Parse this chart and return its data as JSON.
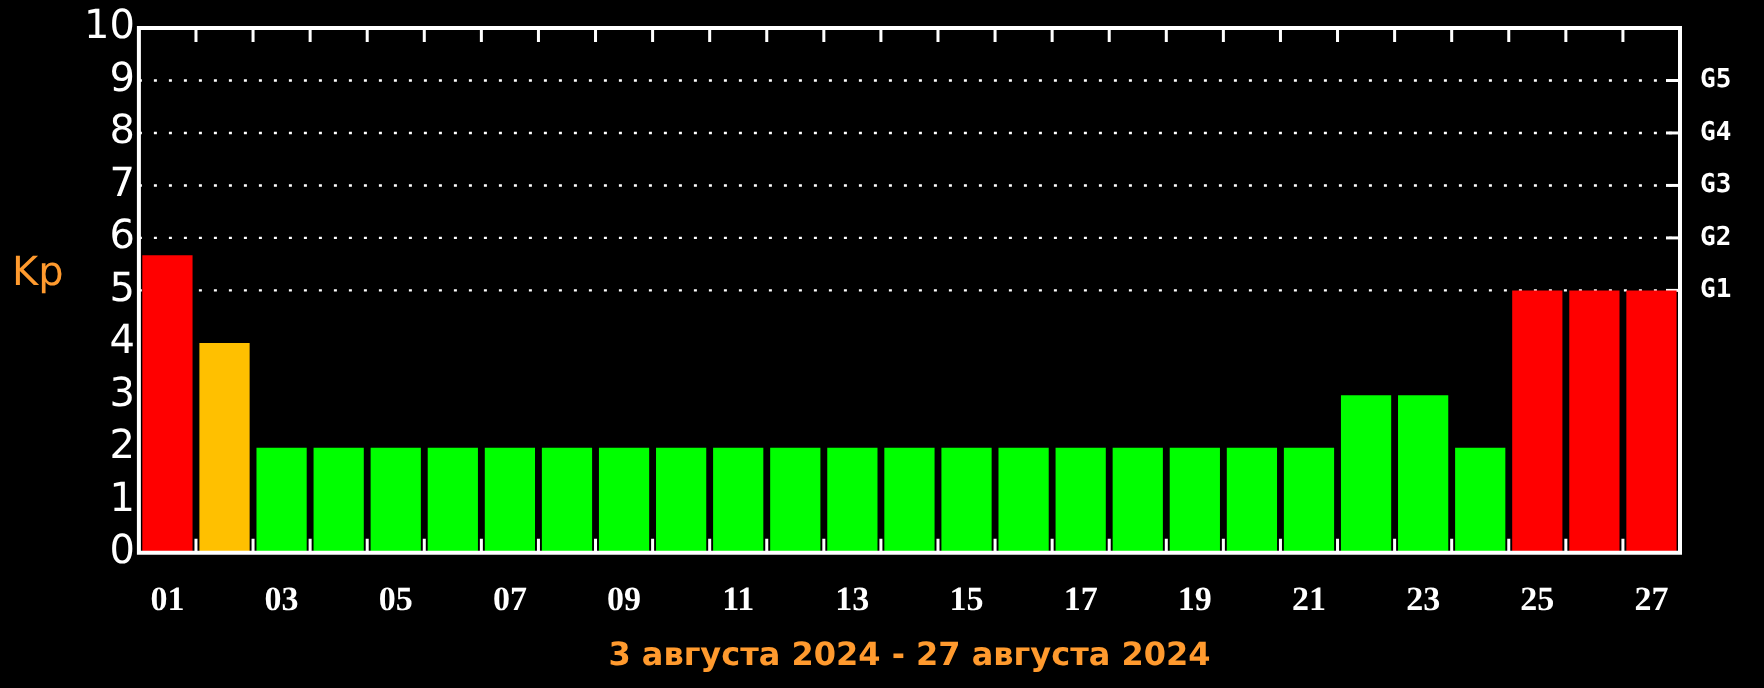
{
  "chart_data": {
    "type": "bar",
    "xlabel": "3 августа 2024 - 27 августа 2024",
    "ylabel": "Kp",
    "categories": [
      "01",
      null,
      "03",
      null,
      "05",
      null,
      "07",
      null,
      "09",
      null,
      "11",
      null,
      "13",
      null,
      "15",
      null,
      "17",
      null,
      "19",
      null,
      "21",
      null,
      "23",
      null,
      "25",
      null,
      "27"
    ],
    "values": [
      5.67,
      4,
      2,
      2,
      2,
      2,
      2,
      2,
      2,
      2,
      2,
      2,
      2,
      2,
      2,
      2,
      2,
      2,
      2,
      2,
      2,
      3,
      3,
      2,
      5,
      5,
      5
    ],
    "colors": [
      "#ff0000",
      "#ffc000",
      "#00ff00",
      "#00ff00",
      "#00ff00",
      "#00ff00",
      "#00ff00",
      "#00ff00",
      "#00ff00",
      "#00ff00",
      "#00ff00",
      "#00ff00",
      "#00ff00",
      "#00ff00",
      "#00ff00",
      "#00ff00",
      "#00ff00",
      "#00ff00",
      "#00ff00",
      "#00ff00",
      "#00ff00",
      "#00ff00",
      "#00ff00",
      "#00ff00",
      "#ff0000",
      "#ff0000",
      "#ff0000"
    ],
    "ylim": [
      0,
      10
    ],
    "yticks": [
      0,
      1,
      2,
      3,
      4,
      5,
      6,
      7,
      8,
      9,
      10
    ],
    "ref_lines": [
      {
        "axis": "y",
        "value": 5,
        "label": "G1",
        "line_style": "dotted"
      },
      {
        "axis": "y",
        "value": 6,
        "label": "G2",
        "line_style": "dotted"
      },
      {
        "axis": "y",
        "value": 7,
        "label": "G3",
        "line_style": "dotted"
      },
      {
        "axis": "y",
        "value": 8,
        "label": "G4",
        "line_style": "dotted"
      },
      {
        "axis": "y",
        "value": 9,
        "label": "G5",
        "line_style": "dotted"
      }
    ]
  }
}
